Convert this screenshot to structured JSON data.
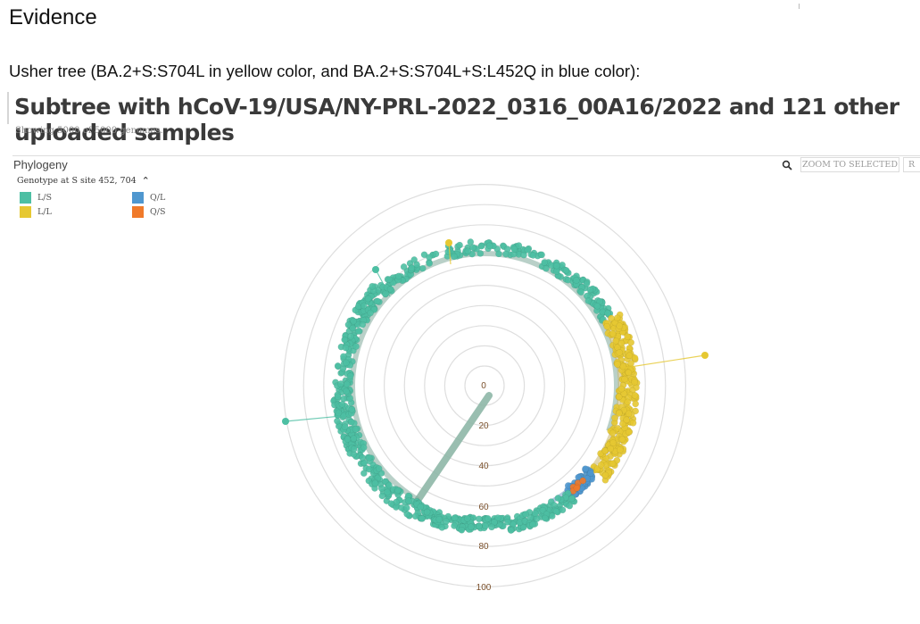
{
  "heading": "Evidence",
  "caption": "Usher tree (BA.2+S:S704L in yellow color, and BA.2+S:S704L+S:L452Q in blue color):",
  "subtree_title": "Subtree with hCoV-19/USA/NY-PRL-2022_0316_00A16/2022 and 121 other uploaded samples",
  "showing": "Showing 5000 of 5000 genomes.",
  "panel": {
    "title": "Phylogeny",
    "genotype_label": "Genotype at S site 452, 704",
    "zoom_label": "ZOOM TO SELECTED",
    "reset_label": "R"
  },
  "legend": [
    {
      "label": "L/S",
      "color": "#4dbfa3"
    },
    {
      "label": "L/L",
      "color": "#e6c832"
    },
    {
      "label": "Q/L",
      "color": "#4f97cf"
    },
    {
      "label": "Q/S",
      "color": "#f07a2a"
    }
  ],
  "axis_ticks": [
    "0",
    "20",
    "40",
    "60",
    "80",
    "100"
  ],
  "colors": {
    "teal": "#4dbfa3",
    "yellow": "#e6c832",
    "blue": "#4f97cf",
    "orange": "#f07a2a",
    "trunk": "#8fb8a8"
  }
}
